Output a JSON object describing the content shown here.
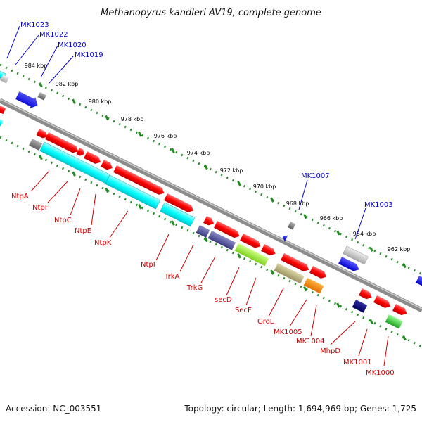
{
  "title": "Methanopyrus kandleri AV19, complete genome",
  "footer": {
    "accession": "Accession: NC_003551",
    "summary": "Topology: circular; Length: 1,694,969 bp; Genes: 1,725"
  },
  "colors": {
    "backbone": "#8c8c8c",
    "tick": "#228b22",
    "label_top": "#0000cc",
    "label_bottom": "#cc0000"
  },
  "scale_labels": [
    "984 kbp",
    "982 kbp",
    "980 kbp",
    "978 kbp",
    "976 kbp",
    "974 kbp",
    "972 kbp",
    "970 kbp",
    "968 kbp",
    "966 kbp",
    "964 kbp",
    "962 kbp"
  ],
  "top_labels": [
    "MK1023",
    "MK1022",
    "MK1020",
    "MK1019",
    "MK1007",
    "MK1003"
  ],
  "bottom_labels": [
    "NtpA",
    "NtpF",
    "NtpC",
    "NtpE",
    "NtpK",
    "NtpI",
    "TrkA",
    "TrkG",
    "secD",
    "SecF",
    "GroL",
    "MK1005",
    "MK1004",
    "MhpD",
    "MK1001",
    "MK1000"
  ],
  "feature_colors": {
    "red": "#ff0000",
    "cyan": "#00ffff",
    "gray": "#808080",
    "silver": "#c8c8c8",
    "blue": "#0000ff",
    "slate": "#4b4b9b",
    "lime": "#9aff30",
    "khaki": "#b8b077",
    "orange": "#ff8c00",
    "navy": "#000080",
    "green": "#32cd32"
  }
}
